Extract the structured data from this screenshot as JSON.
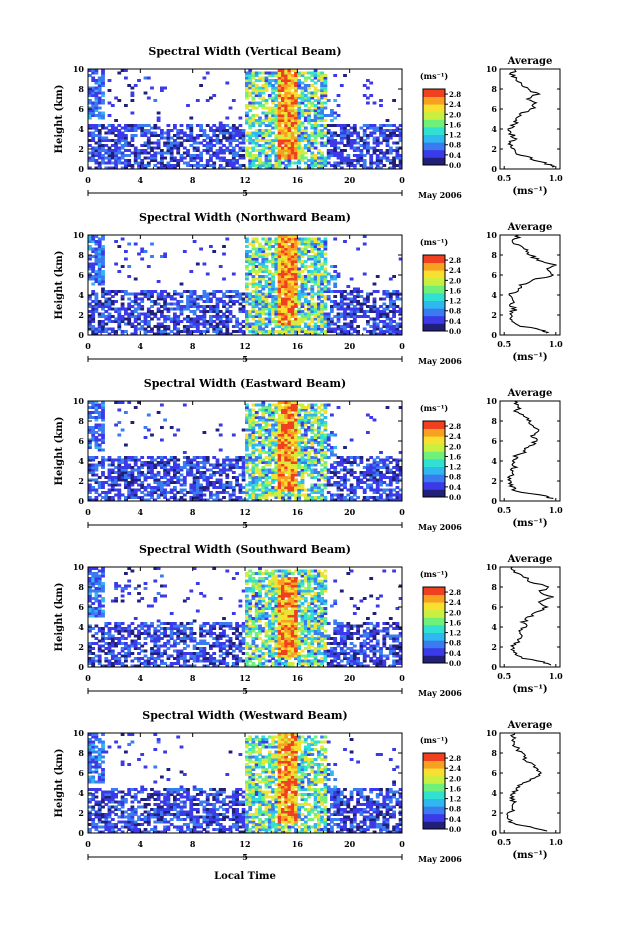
{
  "figure": {
    "shared_x_label": "Local Time",
    "date_label_day": "5",
    "date_label_month": "May 2006",
    "y_label": "Height (km)",
    "colorbar_unit": "(ms⁻¹)",
    "avg_title": "Average",
    "avg_xlabel": "(ms⁻¹)"
  },
  "chart_data": [
    {
      "type": "heatmap",
      "title": "Spectral Width (Vertical Beam)",
      "xlabel": "Local Time",
      "ylabel": "Height (km)",
      "xlim": [
        0,
        24
      ],
      "ylim": [
        0,
        10
      ],
      "xticks": [
        "0",
        "4",
        "8",
        "12",
        "16",
        "20",
        "0"
      ],
      "yticks": [
        "0",
        "2",
        "4",
        "6",
        "8",
        "10"
      ],
      "colorbar": {
        "unit": "(ms⁻¹)",
        "ticks": [
          "0.0",
          "0.4",
          "0.8",
          "1.2",
          "1.6",
          "2.0",
          "2.4",
          "2.8"
        ],
        "range": [
          0,
          3.0
        ]
      },
      "features": {
        "convective_core_time": [
          14.5,
          16.0
        ],
        "convective_core_height": [
          1,
          10
        ],
        "peak_width": 3.0
      },
      "average_profile": {
        "xlim": [
          0.5,
          1.0
        ],
        "xticks": [
          "0.5",
          "1.0"
        ],
        "height": [
          0.2,
          0.5,
          1,
          1.5,
          2,
          2.5,
          3,
          3.5,
          4,
          4.5,
          5,
          5.5,
          6,
          6.5,
          7,
          7.5,
          8,
          8.5,
          9,
          9.5,
          10
        ],
        "value": [
          0.98,
          0.92,
          0.78,
          0.62,
          0.58,
          0.55,
          0.6,
          0.57,
          0.56,
          0.6,
          0.62,
          0.66,
          0.76,
          0.8,
          0.74,
          0.83,
          0.72,
          0.66,
          0.6,
          0.57,
          0.6
        ]
      }
    },
    {
      "type": "heatmap",
      "title": "Spectral Width (Northward Beam)",
      "xlabel": "Local Time",
      "ylabel": "Height (km)",
      "xlim": [
        0,
        24
      ],
      "ylim": [
        0,
        10
      ],
      "xticks": [
        "0",
        "4",
        "8",
        "12",
        "16",
        "20",
        "0"
      ],
      "yticks": [
        "0",
        "2",
        "4",
        "6",
        "8",
        "10"
      ],
      "colorbar": {
        "unit": "(ms⁻¹)",
        "ticks": [
          "0.0",
          "0.4",
          "0.8",
          "1.2",
          "1.6",
          "2.0",
          "2.4",
          "2.8"
        ],
        "range": [
          0,
          3.0
        ]
      },
      "features": {
        "convective_core_time": [
          14.5,
          16.0
        ],
        "convective_core_height": [
          1,
          10
        ],
        "peak_width": 3.0
      },
      "average_profile": {
        "xlim": [
          0.5,
          1.0
        ],
        "xticks": [
          "0.5",
          "1.0"
        ],
        "height": [
          0.2,
          0.5,
          1,
          1.5,
          2,
          2.5,
          3,
          3.5,
          4,
          4.5,
          5,
          5.5,
          6,
          6.5,
          7,
          7.5,
          8,
          8.5,
          9,
          9.5,
          10
        ],
        "value": [
          0.92,
          0.86,
          0.62,
          0.58,
          0.55,
          0.6,
          0.57,
          0.6,
          0.56,
          0.62,
          0.66,
          0.78,
          0.98,
          0.9,
          1.0,
          0.82,
          0.76,
          0.7,
          0.62,
          0.6,
          0.64
        ]
      }
    },
    {
      "type": "heatmap",
      "title": "Spectral Width (Eastward Beam)",
      "xlabel": "Local Time",
      "ylabel": "Height (km)",
      "xlim": [
        0,
        24
      ],
      "ylim": [
        0,
        10
      ],
      "xticks": [
        "0",
        "4",
        "8",
        "12",
        "16",
        "20",
        "0"
      ],
      "yticks": [
        "0",
        "2",
        "4",
        "6",
        "8",
        "10"
      ],
      "colorbar": {
        "unit": "(ms⁻¹)",
        "ticks": [
          "0.0",
          "0.4",
          "0.8",
          "1.2",
          "1.6",
          "2.0",
          "2.4",
          "2.8"
        ],
        "range": [
          0,
          3.0
        ]
      },
      "features": {
        "convective_core_time": [
          14.5,
          16.0
        ],
        "convective_core_height": [
          1,
          10
        ],
        "peak_width": 3.0
      },
      "average_profile": {
        "xlim": [
          0.5,
          1.0
        ],
        "xticks": [
          "0.5",
          "1.0"
        ],
        "height": [
          0.2,
          0.5,
          1,
          1.5,
          2,
          2.5,
          3,
          3.5,
          4,
          4.5,
          5,
          5.5,
          6,
          6.5,
          7,
          7.5,
          8,
          8.5,
          9,
          9.5,
          10
        ],
        "value": [
          0.98,
          0.9,
          0.62,
          0.56,
          0.54,
          0.56,
          0.58,
          0.6,
          0.58,
          0.62,
          0.7,
          0.74,
          0.82,
          0.76,
          0.86,
          0.8,
          0.74,
          0.7,
          0.62,
          0.66,
          0.6
        ]
      }
    },
    {
      "type": "heatmap",
      "title": "Spectral Width (Southward Beam)",
      "xlabel": "Local Time",
      "ylabel": "Height (km)",
      "xlim": [
        0,
        24
      ],
      "ylim": [
        0,
        10
      ],
      "xticks": [
        "0",
        "4",
        "8",
        "12",
        "16",
        "20",
        "0"
      ],
      "yticks": [
        "0",
        "2",
        "4",
        "6",
        "8",
        "10"
      ],
      "colorbar": {
        "unit": "(ms⁻¹)",
        "ticks": [
          "0.0",
          "0.4",
          "0.8",
          "1.2",
          "1.6",
          "2.0",
          "2.4",
          "2.8"
        ],
        "range": [
          0,
          3.0
        ]
      },
      "features": {
        "convective_core_time": [
          14.5,
          16.0
        ],
        "convective_core_height": [
          1,
          9
        ],
        "peak_width": 3.0
      },
      "average_profile": {
        "xlim": [
          0.5,
          1.0
        ],
        "xticks": [
          "0.5",
          "1.0"
        ],
        "height": [
          0.2,
          0.5,
          1,
          1.5,
          2,
          2.5,
          3,
          3.5,
          4,
          4.5,
          5,
          5.5,
          6,
          6.5,
          7,
          7.5,
          8,
          8.5,
          9,
          9.5,
          10
        ],
        "value": [
          0.96,
          0.86,
          0.64,
          0.6,
          0.56,
          0.62,
          0.64,
          0.66,
          0.7,
          0.68,
          0.74,
          0.8,
          0.92,
          0.86,
          0.98,
          0.82,
          0.94,
          0.74,
          0.7,
          0.62,
          0.58
        ]
      }
    },
    {
      "type": "heatmap",
      "title": "Spectral Width (Westward Beam)",
      "xlabel": "Local Time",
      "ylabel": "Height (km)",
      "xlim": [
        0,
        24
      ],
      "ylim": [
        0,
        10
      ],
      "xticks": [
        "0",
        "4",
        "8",
        "12",
        "16",
        "20",
        "0"
      ],
      "yticks": [
        "0",
        "2",
        "4",
        "6",
        "8",
        "10"
      ],
      "colorbar": {
        "unit": "(ms⁻¹)",
        "ticks": [
          "0.0",
          "0.4",
          "0.8",
          "1.2",
          "1.6",
          "2.0",
          "2.4",
          "2.8"
        ],
        "range": [
          0,
          3.0
        ]
      },
      "features": {
        "convective_core_time": [
          14.5,
          16.0
        ],
        "convective_core_height": [
          1,
          10
        ],
        "peak_width": 3.0
      },
      "average_profile": {
        "xlim": [
          0.5,
          1.0
        ],
        "xticks": [
          "0.5",
          "1.0"
        ],
        "height": [
          0.2,
          0.5,
          1,
          1.5,
          2,
          2.5,
          3,
          3.5,
          4,
          4.5,
          5,
          5.5,
          6,
          6.5,
          7,
          7.5,
          8,
          8.5,
          9,
          9.5,
          10
        ],
        "value": [
          0.92,
          0.8,
          0.58,
          0.54,
          0.56,
          0.58,
          0.6,
          0.56,
          0.58,
          0.62,
          0.7,
          0.78,
          0.86,
          0.8,
          0.74,
          0.7,
          0.66,
          0.62,
          0.6,
          0.58,
          0.6
        ]
      }
    }
  ],
  "colors": {
    "colormap": [
      "#20207a",
      "#3a3ae8",
      "#3a7cf0",
      "#2fb8f0",
      "#30e0d0",
      "#6ef07a",
      "#c8f040",
      "#f8e030",
      "#f8a020",
      "#f04020"
    ],
    "line": "#000000",
    "background": "#ffffff"
  }
}
